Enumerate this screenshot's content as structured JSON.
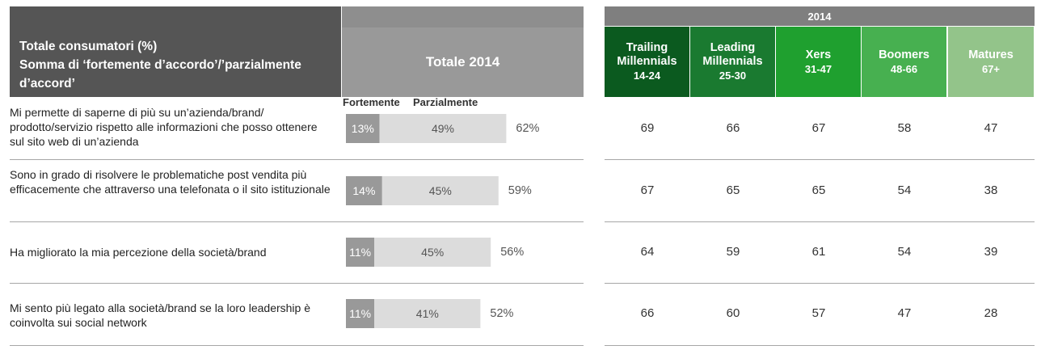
{
  "header": {
    "label_lines": [
      "Totale consumatori (%)",
      "Somma di ‘fortemente d’accordo’/’parzialmente",
      "d’accord’"
    ],
    "total_title": "Totale 2014",
    "year": "2014",
    "groups": [
      {
        "name": "Trailing\nMillennials",
        "age": "14-24",
        "color": "#0b5a1f"
      },
      {
        "name": "Leading\nMillennials",
        "age": "25-30",
        "color": "#1a7a30"
      },
      {
        "name": "Xers",
        "age": "31-47",
        "color": "#1fa02f"
      },
      {
        "name": "Boomers",
        "age": "48-66",
        "color": "#47b050"
      },
      {
        "name": "Matures",
        "age": "67+",
        "color": "#93c48a"
      }
    ]
  },
  "legend": {
    "strong": "Fortemente",
    "partial": "Parzialmente"
  },
  "colors": {
    "strong": "#999999",
    "partial": "#dcdcdc"
  },
  "rows": [
    {
      "text": "Mi permette di saperne di più su un’azienda/brand/ prodotto/servizio rispetto alle informazioni che posso ottenere sul sito web di un’azienda"
    },
    {
      "text": "Sono in grado di risolvere le problematiche post vendita più efficacemente che attraverso una telefonata o il sito istituzionale"
    },
    {
      "text": "Ha migliorato la mia percezione della società/brand"
    },
    {
      "text": "Mi sento più legato alla società/brand se la loro leadership è coinvolta sui social network"
    }
  ],
  "chart_data": {
    "type": "bar",
    "stacked": true,
    "orientation": "horizontal",
    "series": [
      {
        "name": "Fortemente",
        "values": [
          13,
          14,
          11,
          11
        ]
      },
      {
        "name": "Parzialmente",
        "values": [
          49,
          45,
          45,
          41
        ]
      }
    ],
    "totals": [
      62,
      59,
      56,
      52
    ],
    "value_suffix": "%"
  },
  "table": {
    "values": [
      [
        69,
        66,
        67,
        58,
        47
      ],
      [
        67,
        65,
        65,
        54,
        38
      ],
      [
        64,
        59,
        61,
        54,
        39
      ],
      [
        66,
        60,
        57,
        47,
        28
      ]
    ]
  }
}
